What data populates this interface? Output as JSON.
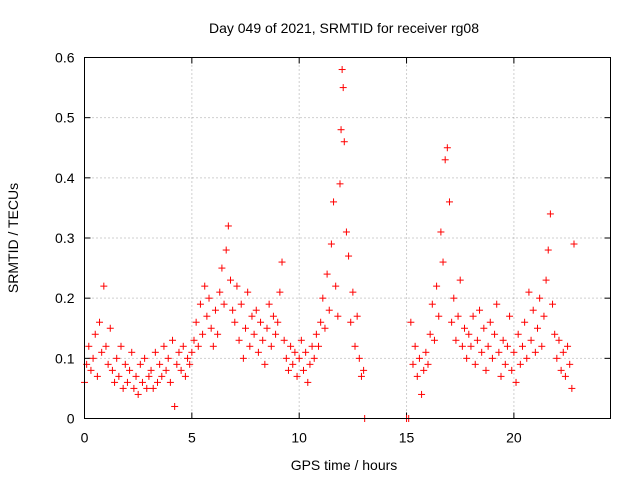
{
  "chart_data": {
    "type": "scatter",
    "title": "Day 049 of 2021, SRMTID for receiver rg08",
    "xlabel": "GPS time / hours",
    "ylabel": "SRMTID / TECUs",
    "xlim": [
      0,
      24.5
    ],
    "ylim": [
      0,
      0.6
    ],
    "xticks": [
      0,
      5,
      10,
      15,
      20
    ],
    "xtick_labels": [
      "0",
      "5",
      "10",
      "15",
      "20"
    ],
    "yticks": [
      0,
      0.1,
      0.2,
      0.3,
      0.4,
      0.5,
      0.6
    ],
    "ytick_labels": [
      "0",
      "0.1",
      "0.2",
      "0.3",
      "0.4",
      "0.5",
      "0.6"
    ],
    "grid": true,
    "marker": "+",
    "color": "#ff0000",
    "series": [
      {
        "name": "SRMTID",
        "points": [
          [
            0.0,
            0.06
          ],
          [
            0.1,
            0.09
          ],
          [
            0.2,
            0.12
          ],
          [
            0.3,
            0.08
          ],
          [
            0.4,
            0.1
          ],
          [
            0.5,
            0.14
          ],
          [
            0.6,
            0.07
          ],
          [
            0.7,
            0.16
          ],
          [
            0.8,
            0.11
          ],
          [
            0.9,
            0.22
          ],
          [
            1.0,
            0.12
          ],
          [
            1.1,
            0.09
          ],
          [
            1.2,
            0.15
          ],
          [
            1.3,
            0.08
          ],
          [
            1.4,
            0.06
          ],
          [
            1.5,
            0.1
          ],
          [
            1.6,
            0.07
          ],
          [
            1.7,
            0.12
          ],
          [
            1.8,
            0.05
          ],
          [
            1.9,
            0.09
          ],
          [
            2.0,
            0.06
          ],
          [
            2.1,
            0.08
          ],
          [
            2.2,
            0.11
          ],
          [
            2.3,
            0.05
          ],
          [
            2.4,
            0.07
          ],
          [
            2.5,
            0.04
          ],
          [
            2.6,
            0.09
          ],
          [
            2.7,
            0.06
          ],
          [
            2.8,
            0.1
          ],
          [
            2.9,
            0.05
          ],
          [
            3.0,
            0.07
          ],
          [
            3.1,
            0.08
          ],
          [
            3.2,
            0.05
          ],
          [
            3.3,
            0.11
          ],
          [
            3.4,
            0.06
          ],
          [
            3.5,
            0.09
          ],
          [
            3.6,
            0.07
          ],
          [
            3.7,
            0.12
          ],
          [
            3.8,
            0.08
          ],
          [
            3.9,
            0.1
          ],
          [
            4.0,
            0.06
          ],
          [
            4.1,
            0.13
          ],
          [
            4.2,
            0.02
          ],
          [
            4.3,
            0.09
          ],
          [
            4.4,
            0.11
          ],
          [
            4.5,
            0.08
          ],
          [
            4.6,
            0.12
          ],
          [
            4.7,
            0.07
          ],
          [
            4.8,
            0.1
          ],
          [
            4.9,
            0.09
          ],
          [
            5.0,
            0.11
          ],
          [
            5.1,
            0.13
          ],
          [
            5.2,
            0.16
          ],
          [
            5.3,
            0.12
          ],
          [
            5.4,
            0.19
          ],
          [
            5.5,
            0.14
          ],
          [
            5.6,
            0.22
          ],
          [
            5.7,
            0.17
          ],
          [
            5.8,
            0.2
          ],
          [
            5.9,
            0.15
          ],
          [
            6.0,
            0.12
          ],
          [
            6.1,
            0.18
          ],
          [
            6.2,
            0.14
          ],
          [
            6.3,
            0.21
          ],
          [
            6.4,
            0.25
          ],
          [
            6.5,
            0.19
          ],
          [
            6.6,
            0.28
          ],
          [
            6.7,
            0.32
          ],
          [
            6.8,
            0.23
          ],
          [
            6.9,
            0.18
          ],
          [
            7.0,
            0.16
          ],
          [
            7.1,
            0.22
          ],
          [
            7.2,
            0.13
          ],
          [
            7.3,
            0.19
          ],
          [
            7.4,
            0.1
          ],
          [
            7.5,
            0.15
          ],
          [
            7.6,
            0.21
          ],
          [
            7.7,
            0.12
          ],
          [
            7.8,
            0.17
          ],
          [
            7.9,
            0.14
          ],
          [
            8.0,
            0.18
          ],
          [
            8.1,
            0.11
          ],
          [
            8.2,
            0.16
          ],
          [
            8.3,
            0.13
          ],
          [
            8.4,
            0.09
          ],
          [
            8.5,
            0.15
          ],
          [
            8.6,
            0.19
          ],
          [
            8.7,
            0.12
          ],
          [
            8.8,
            0.17
          ],
          [
            8.9,
            0.14
          ],
          [
            9.0,
            0.16
          ],
          [
            9.1,
            0.21
          ],
          [
            9.2,
            0.26
          ],
          [
            9.3,
            0.13
          ],
          [
            9.4,
            0.1
          ],
          [
            9.5,
            0.08
          ],
          [
            9.6,
            0.12
          ],
          [
            9.7,
            0.09
          ],
          [
            9.8,
            0.11
          ],
          [
            9.9,
            0.07
          ],
          [
            10.0,
            0.1
          ],
          [
            10.1,
            0.13
          ],
          [
            10.2,
            0.08
          ],
          [
            10.3,
            0.11
          ],
          [
            10.4,
            0.06
          ],
          [
            10.5,
            0.09
          ],
          [
            10.6,
            0.12
          ],
          [
            10.7,
            0.1
          ],
          [
            10.8,
            0.14
          ],
          [
            10.9,
            0.12
          ],
          [
            11.0,
            0.16
          ],
          [
            11.1,
            0.2
          ],
          [
            11.2,
            0.15
          ],
          [
            11.3,
            0.24
          ],
          [
            11.4,
            0.18
          ],
          [
            11.5,
            0.29
          ],
          [
            11.6,
            0.36
          ],
          [
            11.7,
            0.22
          ],
          [
            11.8,
            0.17
          ],
          [
            11.9,
            0.39
          ],
          [
            12.0,
            0.58
          ],
          [
            12.05,
            0.55
          ],
          [
            11.95,
            0.48
          ],
          [
            12.1,
            0.46
          ],
          [
            12.2,
            0.31
          ],
          [
            12.3,
            0.27
          ],
          [
            12.4,
            0.16
          ],
          [
            12.5,
            0.21
          ],
          [
            12.6,
            0.12
          ],
          [
            12.7,
            0.17
          ],
          [
            12.8,
            0.1
          ],
          [
            12.9,
            0.07
          ],
          [
            13.0,
            0.08
          ],
          [
            13.05,
            0.0
          ],
          [
            15.0,
            0.0
          ],
          [
            15.1,
            0.0
          ],
          [
            15.2,
            0.16
          ],
          [
            15.3,
            0.09
          ],
          [
            15.4,
            0.12
          ],
          [
            15.5,
            0.07
          ],
          [
            15.6,
            0.1
          ],
          [
            15.7,
            0.04
          ],
          [
            15.8,
            0.08
          ],
          [
            15.9,
            0.11
          ],
          [
            16.0,
            0.09
          ],
          [
            16.1,
            0.14
          ],
          [
            16.2,
            0.19
          ],
          [
            16.3,
            0.13
          ],
          [
            16.4,
            0.22
          ],
          [
            16.5,
            0.17
          ],
          [
            16.6,
            0.31
          ],
          [
            16.7,
            0.26
          ],
          [
            16.8,
            0.43
          ],
          [
            16.9,
            0.45
          ],
          [
            17.0,
            0.36
          ],
          [
            17.1,
            0.16
          ],
          [
            17.2,
            0.2
          ],
          [
            17.3,
            0.13
          ],
          [
            17.4,
            0.17
          ],
          [
            17.5,
            0.23
          ],
          [
            17.6,
            0.12
          ],
          [
            17.7,
            0.15
          ],
          [
            17.8,
            0.1
          ],
          [
            17.9,
            0.14
          ],
          [
            18.0,
            0.12
          ],
          [
            18.1,
            0.17
          ],
          [
            18.2,
            0.09
          ],
          [
            18.3,
            0.13
          ],
          [
            18.4,
            0.18
          ],
          [
            18.5,
            0.11
          ],
          [
            18.6,
            0.15
          ],
          [
            18.7,
            0.08
          ],
          [
            18.8,
            0.12
          ],
          [
            18.9,
            0.16
          ],
          [
            19.0,
            0.1
          ],
          [
            19.1,
            0.14
          ],
          [
            19.2,
            0.19
          ],
          [
            19.3,
            0.11
          ],
          [
            19.4,
            0.07
          ],
          [
            19.5,
            0.13
          ],
          [
            19.6,
            0.09
          ],
          [
            19.7,
            0.12
          ],
          [
            19.8,
            0.17
          ],
          [
            19.9,
            0.08
          ],
          [
            20.0,
            0.11
          ],
          [
            20.1,
            0.06
          ],
          [
            20.2,
            0.14
          ],
          [
            20.3,
            0.09
          ],
          [
            20.4,
            0.12
          ],
          [
            20.5,
            0.16
          ],
          [
            20.6,
            0.1
          ],
          [
            20.7,
            0.21
          ],
          [
            20.8,
            0.13
          ],
          [
            20.9,
            0.18
          ],
          [
            21.0,
            0.11
          ],
          [
            21.1,
            0.15
          ],
          [
            21.2,
            0.2
          ],
          [
            21.3,
            0.12
          ],
          [
            21.4,
            0.17
          ],
          [
            21.5,
            0.23
          ],
          [
            21.6,
            0.28
          ],
          [
            21.7,
            0.34
          ],
          [
            21.8,
            0.19
          ],
          [
            21.9,
            0.14
          ],
          [
            22.0,
            0.1
          ],
          [
            22.1,
            0.13
          ],
          [
            22.2,
            0.08
          ],
          [
            22.3,
            0.11
          ],
          [
            22.4,
            0.07
          ],
          [
            22.5,
            0.12
          ],
          [
            22.6,
            0.09
          ],
          [
            22.7,
            0.05
          ],
          [
            22.8,
            0.29
          ]
        ]
      }
    ]
  }
}
